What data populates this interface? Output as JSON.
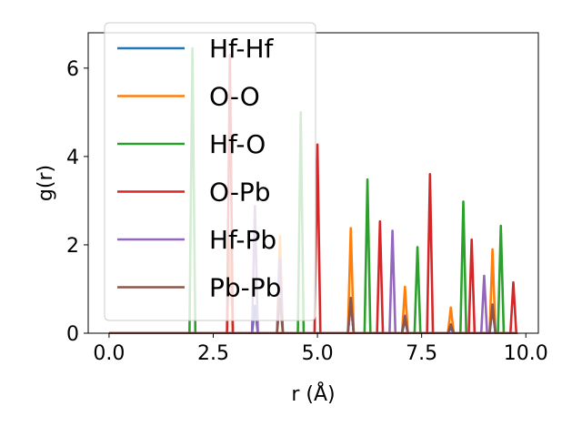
{
  "chart_data": {
    "type": "line",
    "xlabel": "r (Å)",
    "ylabel": "g(r)",
    "xlim": [
      -0.5,
      10.3
    ],
    "ylim": [
      0,
      6.8
    ],
    "xticks": [
      0.0,
      2.5,
      5.0,
      7.5,
      10.0
    ],
    "xtick_labels": [
      "0.0",
      "2.5",
      "5.0",
      "7.5",
      "10.0"
    ],
    "yticks": [
      0,
      2,
      4,
      6
    ],
    "ytick_labels": [
      "0",
      "2",
      "4",
      "6"
    ],
    "grid": false,
    "legend_position": "top-left",
    "series": [
      {
        "name": "Hf-Hf",
        "color": "#1f77b4",
        "x": [
          0,
          9.8
        ],
        "y": [
          0,
          0
        ],
        "peaks": [
          [
            3.5,
            0.62
          ],
          [
            5.8,
            0.68
          ],
          [
            7.1,
            0.3
          ],
          [
            8.2,
            0.12
          ],
          [
            9.2,
            0.58
          ]
        ]
      },
      {
        "name": "O-O",
        "color": "#ff7f0e",
        "x": [
          0,
          9.8
        ],
        "y": [
          0,
          0
        ],
        "peaks": [
          [
            2.9,
            2.1
          ],
          [
            4.1,
            2.2
          ],
          [
            5.8,
            2.38
          ],
          [
            7.1,
            1.05
          ],
          [
            8.2,
            0.58
          ],
          [
            9.2,
            1.9
          ]
        ]
      },
      {
        "name": "Hf-O",
        "color": "#2ca02c",
        "x": [
          0,
          9.8
        ],
        "y": [
          0,
          0
        ],
        "peaks": [
          [
            2.0,
            6.45
          ],
          [
            4.6,
            5.0
          ],
          [
            6.2,
            3.48
          ],
          [
            7.4,
            1.95
          ],
          [
            8.5,
            2.98
          ],
          [
            9.4,
            2.43
          ]
        ]
      },
      {
        "name": "O-Pb",
        "color": "#d62728",
        "x": [
          0,
          9.8
        ],
        "y": [
          0,
          0
        ],
        "peaks": [
          [
            2.9,
            6.3
          ],
          [
            5.0,
            4.27
          ],
          [
            6.5,
            2.53
          ],
          [
            7.7,
            3.6
          ],
          [
            8.7,
            2.12
          ],
          [
            9.7,
            1.15
          ]
        ]
      },
      {
        "name": "Hf-Pb",
        "color": "#9467bd",
        "x": [
          0,
          9.8
        ],
        "y": [
          0,
          0
        ],
        "peaks": [
          [
            3.5,
            2.88
          ],
          [
            4.1,
            1.7
          ],
          [
            5.8,
            0.7
          ],
          [
            6.8,
            2.32
          ],
          [
            7.1,
            0.4
          ],
          [
            9.0,
            1.3
          ]
        ]
      },
      {
        "name": "Pb-Pb",
        "color": "#8c564b",
        "x": [
          0,
          9.8
        ],
        "y": [
          0,
          0
        ],
        "peaks": [
          [
            4.1,
            0.78
          ],
          [
            5.8,
            0.8
          ],
          [
            7.1,
            0.38
          ],
          [
            8.2,
            0.2
          ],
          [
            9.2,
            0.65
          ]
        ]
      }
    ]
  }
}
